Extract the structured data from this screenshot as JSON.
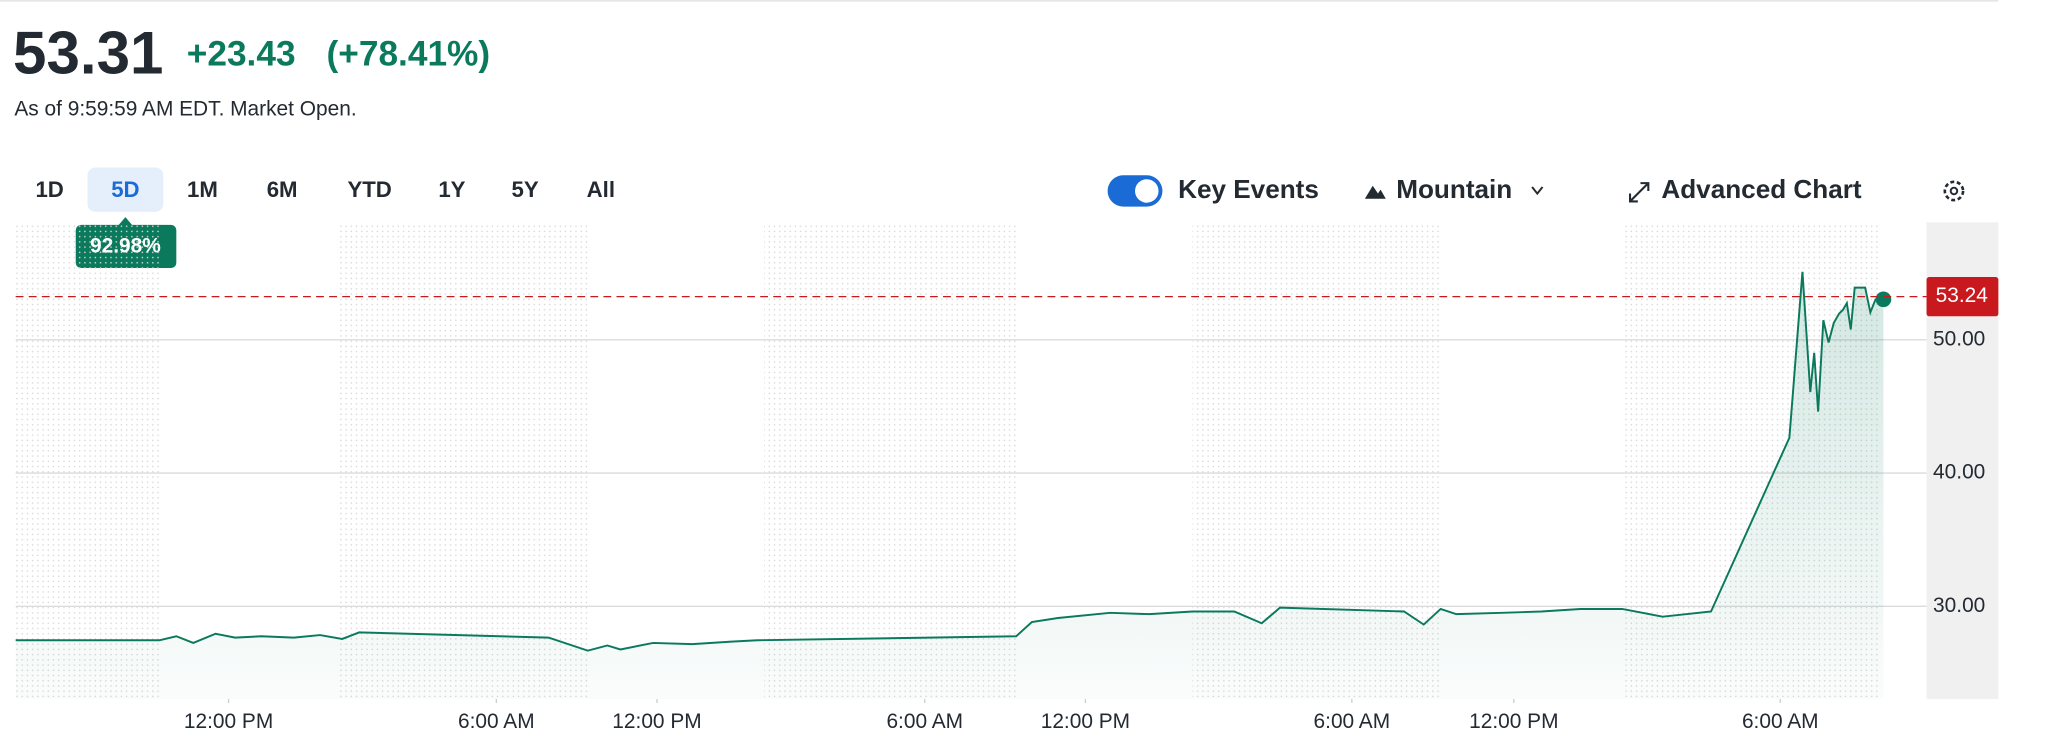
{
  "header": {
    "price": "53.31",
    "change": "+23.43",
    "change_percent": "(+78.41%)",
    "as_of": "As of 9:59:59 AM EDT. Market Open."
  },
  "ranges": {
    "items": [
      "1D",
      "5D",
      "1M",
      "6M",
      "YTD",
      "1Y",
      "5Y",
      "All"
    ],
    "selected": "5D",
    "badge": "92.98%"
  },
  "toolbar": {
    "key_events": "Key Events",
    "chart_style": "Mountain",
    "advanced": "Advanced Chart"
  },
  "chart_data": {
    "type": "area",
    "color": "#0b7a5c",
    "x": [
      12,
      122,
      135,
      148,
      165,
      180,
      200,
      225,
      245,
      262,
      275,
      420,
      450,
      465,
      475,
      500,
      530,
      560,
      580,
      778,
      790,
      810,
      850,
      880,
      913,
      945,
      966,
      980,
      1075,
      1090,
      1103,
      1115,
      1150,
      1180,
      1210,
      1242,
      1273,
      1310,
      1370,
      1380,
      1386,
      1389,
      1392,
      1396,
      1400,
      1404,
      1408,
      1411,
      1414,
      1417,
      1420,
      1428,
      1432,
      1436,
      1442
    ],
    "values": [
      27.45,
      27.45,
      27.75,
      27.25,
      27.94,
      27.65,
      27.75,
      27.65,
      27.84,
      27.55,
      28.04,
      27.65,
      26.67,
      27.06,
      26.76,
      27.25,
      27.16,
      27.35,
      27.45,
      27.75,
      28.82,
      29.12,
      29.51,
      29.41,
      29.61,
      29.61,
      28.73,
      29.9,
      29.61,
      28.63,
      29.8,
      29.41,
      29.51,
      29.61,
      29.8,
      29.8,
      29.22,
      29.61,
      42.65,
      55.1,
      46.08,
      49.02,
      44.61,
      51.47,
      49.8,
      51.27,
      51.96,
      52.25,
      52.75,
      50.78,
      53.92,
      53.92,
      52.06,
      53.04,
      53.04
    ],
    "xlim": [
      12,
      1475
    ],
    "xticks": [
      {
        "value": 175,
        "label": "12:00 PM"
      },
      {
        "value": 380,
        "label": "6:00 AM"
      },
      {
        "value": 503,
        "label": "12:00 PM"
      },
      {
        "value": 708,
        "label": "6:00 AM"
      },
      {
        "value": 831,
        "label": "12:00 PM"
      },
      {
        "value": 1035,
        "label": "6:00 AM"
      },
      {
        "value": 1159,
        "label": "12:00 PM"
      },
      {
        "value": 1363,
        "label": "6:00 AM"
      }
    ],
    "ylim": [
      23.04,
      58.82
    ],
    "yticks": [
      {
        "value": 30,
        "label": "30.00"
      },
      {
        "value": 40,
        "label": "40.00"
      },
      {
        "value": 50,
        "label": "50.00"
      }
    ],
    "reference_line": 53.24,
    "reference_color": "#c8191e",
    "grid": true
  }
}
